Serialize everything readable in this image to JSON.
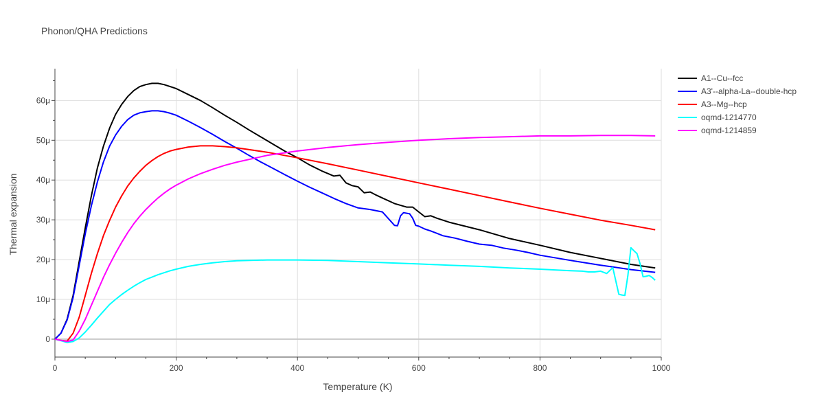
{
  "chart_data": {
    "type": "line",
    "title": "Phonon/QHA Predictions",
    "xlabel": "Temperature (K)",
    "ylabel": "Thermal expansion",
    "xlim": [
      0,
      1000
    ],
    "ylim": [
      -4.5,
      68
    ],
    "x_ticks": [
      0,
      200,
      400,
      600,
      800,
      1000
    ],
    "x_tick_labels": [
      "0",
      "200",
      "400",
      "600",
      "800",
      "1000"
    ],
    "y_ticks": [
      0,
      10,
      20,
      30,
      40,
      50,
      60
    ],
    "y_tick_labels": [
      "0",
      "10μ",
      "20μ",
      "30μ",
      "40μ",
      "50μ",
      "60μ"
    ],
    "grid": true,
    "legend_position": "top-right",
    "series": [
      {
        "name": "A1--Cu--fcc",
        "color": "#000000",
        "x": [
          0,
          10,
          20,
          30,
          40,
          50,
          60,
          70,
          80,
          90,
          100,
          110,
          120,
          130,
          140,
          150,
          160,
          170,
          180,
          190,
          200,
          220,
          240,
          260,
          280,
          300,
          320,
          340,
          360,
          380,
          400,
          420,
          440,
          460,
          470,
          480,
          490,
          500,
          510,
          520,
          530,
          540,
          560,
          580,
          590,
          600,
          610,
          620,
          630,
          650,
          700,
          750,
          800,
          850,
          900,
          950,
          990
        ],
        "y": [
          0,
          1.5,
          5,
          11,
          19.5,
          28,
          36,
          43,
          48.5,
          53,
          56.5,
          59,
          61,
          62.5,
          63.5,
          64,
          64.3,
          64.3,
          64,
          63.5,
          63,
          61.5,
          60,
          58.2,
          56.3,
          54.5,
          52.6,
          50.8,
          49,
          47.2,
          45.6,
          43.8,
          42.3,
          41,
          41.2,
          39.3,
          38.6,
          38.3,
          36.8,
          37,
          36.2,
          35.5,
          34.1,
          33.2,
          33.2,
          32,
          30.8,
          31,
          30.4,
          29.4,
          27.5,
          25.3,
          23.6,
          21.8,
          20.3,
          18.8,
          17.9
        ]
      },
      {
        "name": "A3'--alpha-La--double-hcp",
        "color": "#0000ff",
        "x": [
          0,
          10,
          20,
          30,
          40,
          50,
          60,
          70,
          80,
          90,
          100,
          110,
          120,
          130,
          140,
          150,
          160,
          170,
          180,
          190,
          200,
          220,
          240,
          260,
          280,
          300,
          320,
          340,
          360,
          380,
          400,
          420,
          440,
          460,
          480,
          500,
          520,
          540,
          560,
          565,
          570,
          575,
          585,
          590,
          595,
          600,
          610,
          620,
          630,
          640,
          660,
          680,
          700,
          720,
          740,
          760,
          780,
          800,
          850,
          900,
          950,
          990
        ],
        "y": [
          0,
          1.5,
          4.8,
          10.5,
          18.5,
          26.5,
          33.5,
          39.5,
          44.5,
          48.5,
          51.3,
          53.5,
          55.2,
          56.3,
          56.9,
          57.2,
          57.4,
          57.4,
          57.2,
          56.8,
          56.3,
          54.8,
          53.2,
          51.5,
          49.7,
          48,
          46.2,
          44.5,
          42.9,
          41.3,
          39.7,
          38.2,
          36.8,
          35.4,
          34.1,
          33,
          32.6,
          32,
          28.6,
          28.5,
          31,
          31.8,
          31.5,
          30.4,
          28.6,
          28.4,
          27.7,
          27.2,
          26.6,
          26,
          25.4,
          24.6,
          23.9,
          23.6,
          22.9,
          22.4,
          21.8,
          21.1,
          19.8,
          18.6,
          17.5,
          16.8
        ]
      },
      {
        "name": "A3--Mg--hcp",
        "color": "#ff0000",
        "x": [
          0,
          10,
          20,
          30,
          40,
          50,
          60,
          70,
          80,
          90,
          100,
          110,
          120,
          130,
          140,
          150,
          160,
          170,
          180,
          190,
          200,
          220,
          240,
          260,
          280,
          300,
          350,
          400,
          450,
          500,
          550,
          600,
          650,
          700,
          750,
          800,
          850,
          900,
          950,
          990
        ],
        "y": [
          0,
          -0.3,
          -0.5,
          1.5,
          5.5,
          11,
          16.5,
          21.5,
          26,
          29.8,
          33.2,
          36,
          38.5,
          40.5,
          42.2,
          43.7,
          44.9,
          45.9,
          46.7,
          47.3,
          47.7,
          48.3,
          48.6,
          48.6,
          48.4,
          48.1,
          47,
          45.6,
          44.1,
          42.5,
          40.9,
          39.3,
          37.7,
          36.1,
          34.5,
          32.9,
          31.4,
          29.9,
          28.6,
          27.5
        ]
      },
      {
        "name": "oqmd-1214770",
        "color": "#00ffff",
        "x": [
          0,
          10,
          20,
          30,
          40,
          50,
          60,
          70,
          80,
          90,
          100,
          110,
          120,
          130,
          140,
          150,
          160,
          170,
          180,
          190,
          200,
          220,
          240,
          260,
          280,
          300,
          350,
          400,
          450,
          500,
          550,
          600,
          650,
          700,
          750,
          800,
          850,
          870,
          880,
          890,
          900,
          910,
          920,
          930,
          935,
          940,
          945,
          950,
          955,
          960,
          965,
          970,
          975,
          980,
          985,
          990
        ],
        "y": [
          0,
          -0.4,
          -0.8,
          -0.6,
          0.3,
          1.8,
          3.5,
          5.3,
          7,
          8.7,
          10,
          11.2,
          12.3,
          13.3,
          14.2,
          15,
          15.6,
          16.2,
          16.7,
          17.2,
          17.6,
          18.3,
          18.8,
          19.2,
          19.5,
          19.7,
          19.9,
          19.9,
          19.8,
          19.5,
          19.2,
          18.9,
          18.6,
          18.3,
          17.9,
          17.6,
          17.2,
          17.1,
          16.9,
          16.9,
          17.1,
          16.5,
          18,
          11.3,
          11.1,
          11,
          16,
          23,
          22.2,
          21.5,
          19,
          15.7,
          15.8,
          16,
          15.5,
          14.8
        ]
      },
      {
        "name": "oqmd-1214859",
        "color": "#ff00ff",
        "x": [
          0,
          10,
          20,
          30,
          40,
          50,
          60,
          70,
          80,
          90,
          100,
          110,
          120,
          130,
          140,
          150,
          160,
          170,
          180,
          190,
          200,
          220,
          240,
          260,
          280,
          300,
          350,
          400,
          450,
          500,
          550,
          600,
          650,
          700,
          750,
          800,
          850,
          900,
          950,
          990
        ],
        "y": [
          0,
          -0.3,
          -0.6,
          -0.2,
          2,
          5,
          8.5,
          12,
          15.5,
          18.7,
          21.6,
          24.3,
          26.8,
          29,
          30.9,
          32.6,
          34.1,
          35.5,
          36.7,
          37.8,
          38.7,
          40.3,
          41.6,
          42.7,
          43.7,
          44.5,
          46.2,
          47.3,
          48.2,
          48.9,
          49.5,
          50,
          50.4,
          50.7,
          50.9,
          51.1,
          51.1,
          51.2,
          51.2,
          51.1
        ]
      }
    ]
  }
}
